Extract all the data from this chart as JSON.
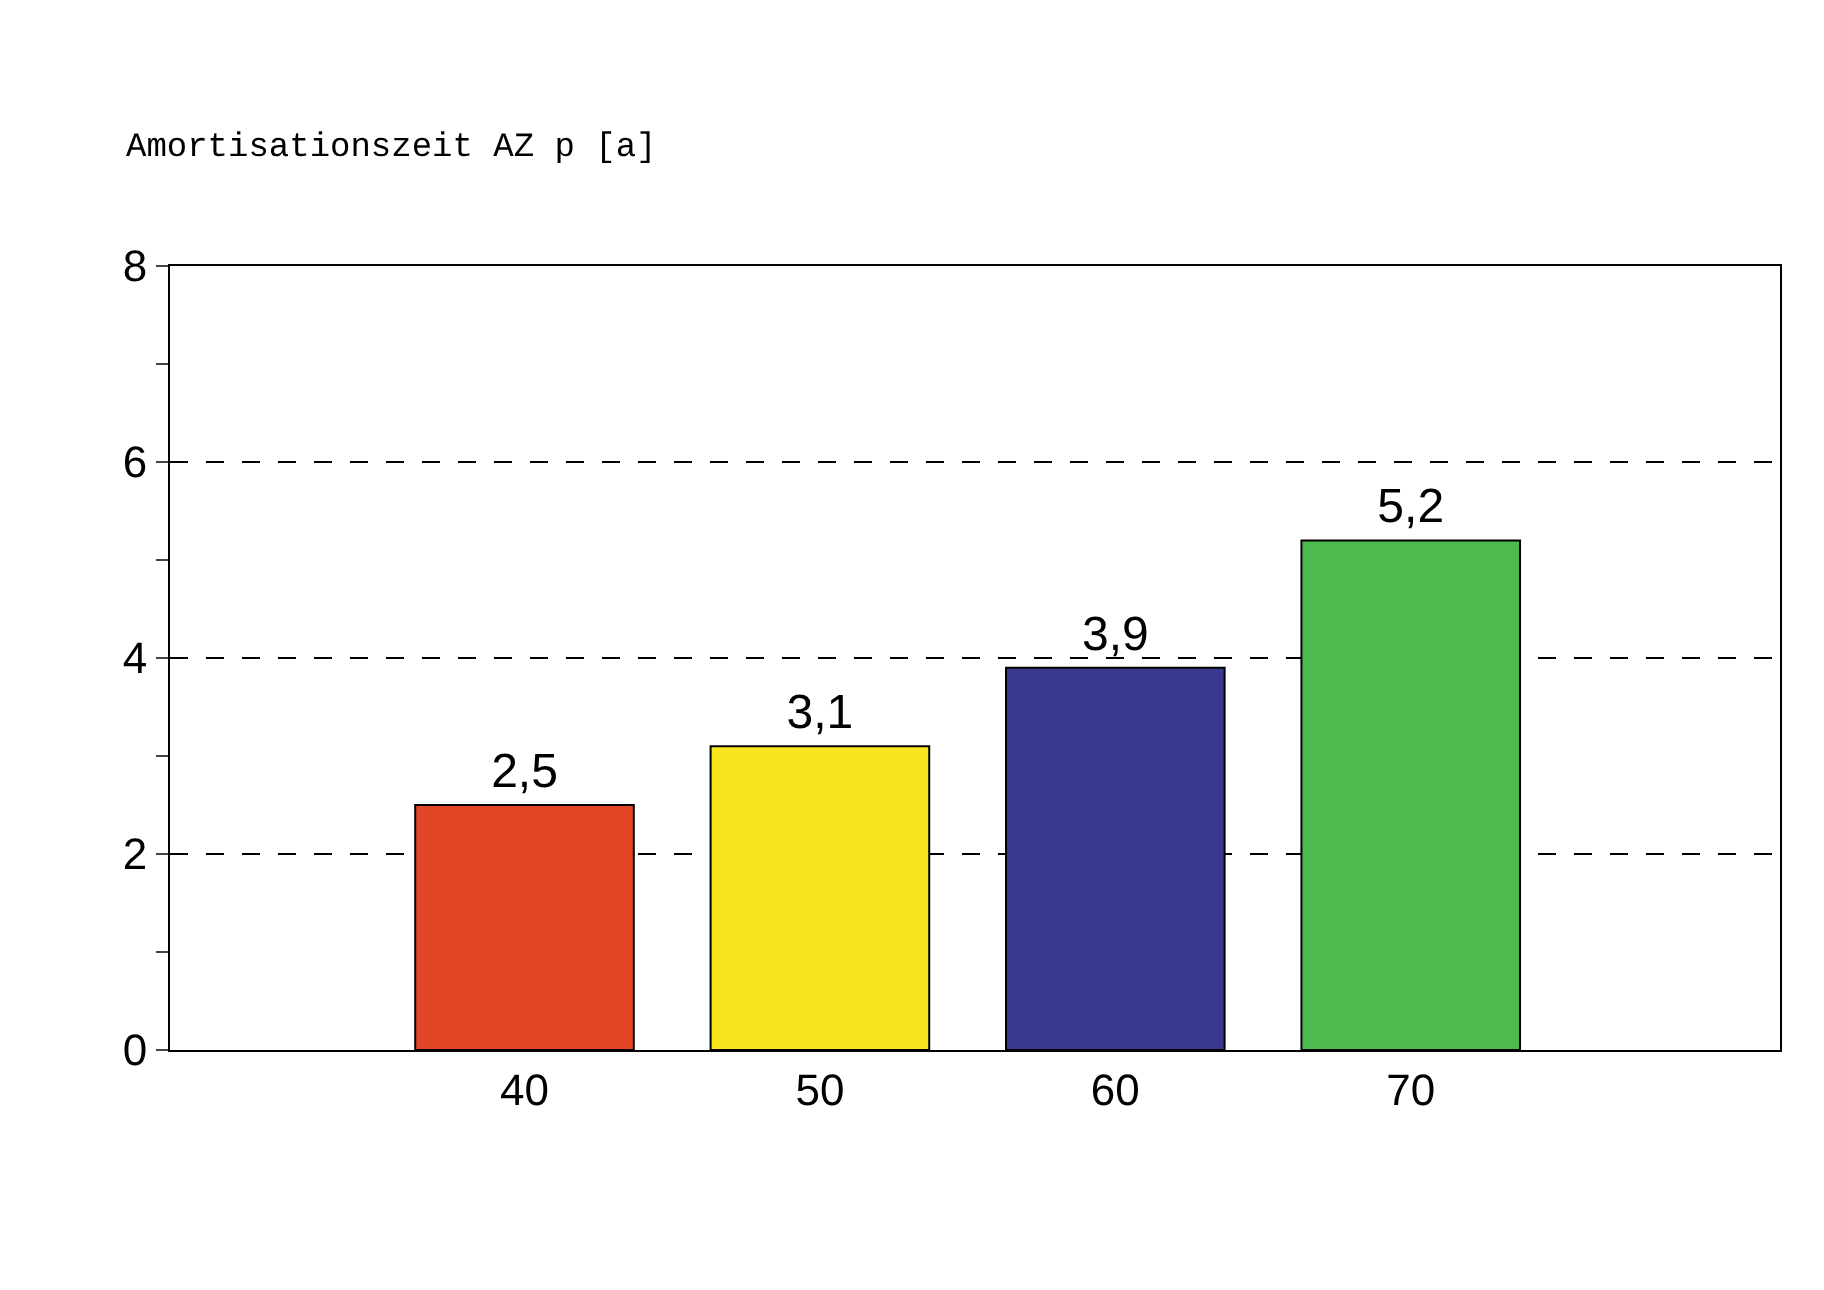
{
  "chart_data": {
    "type": "bar",
    "ylabel": "Amortisationszeit AZ p [a]",
    "categories": [
      "40",
      "50",
      "60",
      "70"
    ],
    "values": [
      2.5,
      3.1,
      3.9,
      5.2
    ],
    "colors": [
      "#e34527",
      "#f9e51f",
      "#393a8e",
      "#4db94f"
    ],
    "value_labels": [
      "2,5",
      "3,1",
      "3,9",
      "5,2"
    ],
    "ylim": [
      0,
      8
    ],
    "yticks": [
      0,
      {
        "value": 1,
        "label": null
      },
      2,
      {
        "value": 3,
        "label": null
      },
      4,
      {
        "value": 5,
        "label": null
      },
      6,
      {
        "value": 7,
        "label": null
      },
      8
    ],
    "grid": "y",
    "legend": false
  }
}
